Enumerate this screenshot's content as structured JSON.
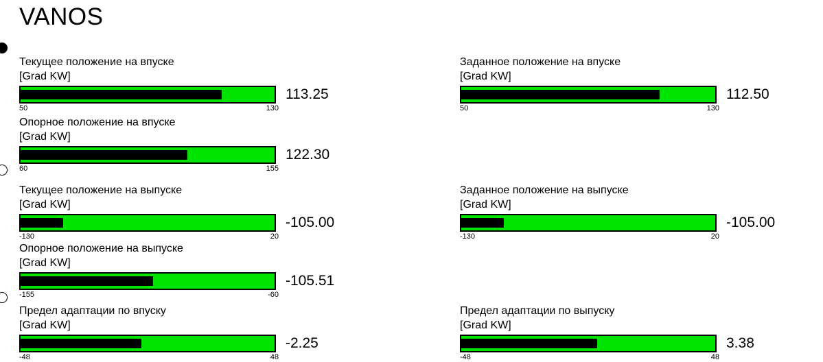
{
  "page": {
    "title": "VANOS"
  },
  "colors": {
    "gauge_track_green": "#00e400",
    "gauge_indicator_black": "#000000",
    "background": "#ffffff"
  },
  "unit_label": "[Grad KW]",
  "markers": [
    {
      "style": "filled"
    },
    {
      "style": "outline"
    },
    {
      "style": "outline"
    }
  ],
  "gauges": [
    {
      "id": "intake-current-position",
      "column": "left",
      "row": 0,
      "label": "Текущее положение на впуске",
      "unit": "[Grad KW]",
      "value": "113.25",
      "value_num": 113.25,
      "min": 50,
      "max": 130,
      "min_label": "50",
      "max_label": "130"
    },
    {
      "id": "intake-target-position",
      "column": "right",
      "row": 0,
      "label": "Заданное положение на впуске",
      "unit": "[Grad KW]",
      "value": "112.50",
      "value_num": 112.5,
      "min": 50,
      "max": 130,
      "min_label": "50",
      "max_label": "130"
    },
    {
      "id": "intake-reference-position",
      "column": "left",
      "row": 1,
      "label": "Опорное положение на впуске",
      "unit": "[Grad KW]",
      "value": "122.30",
      "value_num": 122.3,
      "min": 60,
      "max": 155,
      "min_label": "60",
      "max_label": "155"
    },
    {
      "id": "exhaust-current-position",
      "column": "left",
      "row": 2,
      "label": "Текущее положение на выпуске",
      "unit": "[Grad KW]",
      "value": "-105.00",
      "value_num": -105.0,
      "min": -130,
      "max": 20,
      "min_label": "-130",
      "max_label": "20"
    },
    {
      "id": "exhaust-target-position",
      "column": "right",
      "row": 2,
      "label": "Заданное положение на выпуске",
      "unit": "[Grad KW]",
      "value": "-105.00",
      "value_num": -105.0,
      "min": -130,
      "max": 20,
      "min_label": "-130",
      "max_label": "20"
    },
    {
      "id": "exhaust-reference-position",
      "column": "left",
      "row": 3,
      "label": "Опорное положение на выпуске",
      "unit": "[Grad KW]",
      "value": "-105.51",
      "value_num": -105.51,
      "min": -155,
      "max": -60,
      "min_label": "-155",
      "max_label": "-60"
    },
    {
      "id": "intake-adaptation-limit",
      "column": "left",
      "row": 4,
      "label": "Предел адаптации по впуску",
      "unit": "[Grad KW]",
      "value": "-2.25",
      "value_num": -2.25,
      "min": -48,
      "max": 48,
      "min_label": "-48",
      "max_label": "48"
    },
    {
      "id": "exhaust-adaptation-limit",
      "column": "right",
      "row": 4,
      "label": "Предел адаптации по выпуску",
      "unit": "[Grad KW]",
      "value": "3.38",
      "value_num": 3.38,
      "min": -48,
      "max": 48,
      "min_label": "-48",
      "max_label": "48"
    }
  ]
}
